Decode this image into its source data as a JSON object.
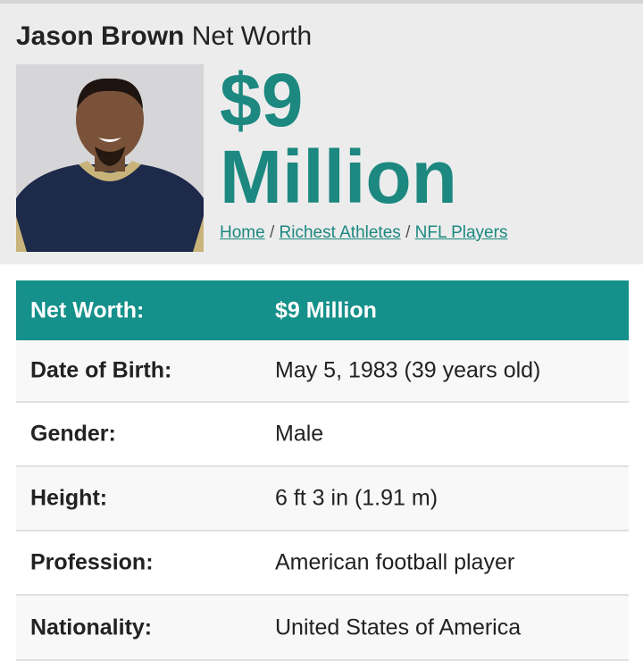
{
  "header": {
    "name": "Jason Brown",
    "title_suffix": "Net Worth",
    "net_worth_line1": "$9",
    "net_worth_line2": "Million",
    "breadcrumbs": [
      "Home",
      "Richest Athletes",
      "NFL Players"
    ],
    "separator": "/"
  },
  "table": {
    "rows": [
      [
        "Net Worth:",
        "$9 Million"
      ],
      [
        "Date of Birth:",
        "May 5, 1983 (39 years old)"
      ],
      [
        "Gender:",
        "Male"
      ],
      [
        "Height:",
        "6 ft 3 in (1.91 m)"
      ],
      [
        "Profession:",
        "American football player"
      ],
      [
        "Nationality:",
        "United States of America"
      ]
    ]
  }
}
